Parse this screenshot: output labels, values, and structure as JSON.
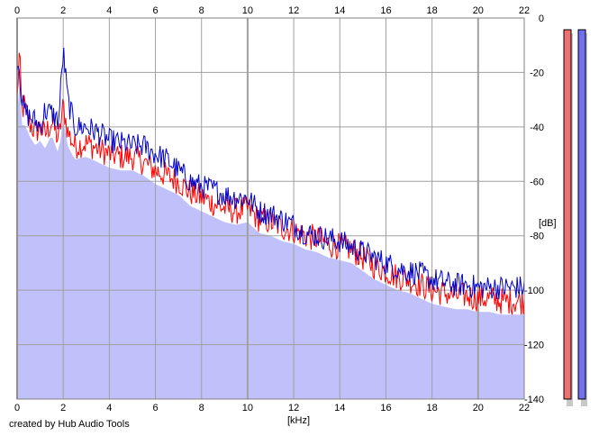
{
  "chart_data": {
    "type": "area",
    "xlabel": "[kHz]",
    "ylabel": "[dB]",
    "xlim": [
      0,
      22
    ],
    "ylim": [
      -140,
      0
    ],
    "x_ticks": [
      0,
      2,
      4,
      6,
      8,
      10,
      12,
      14,
      16,
      18,
      20,
      22
    ],
    "y_ticks": [
      0,
      -20,
      -40,
      -60,
      -80,
      -100,
      -120,
      -140
    ],
    "grid": true,
    "x_unit": "kHz",
    "y_unit": "dB",
    "fill_color": "#c0c0fa",
    "series": [
      {
        "color": "#ff0000",
        "x": [
          0,
          0.1,
          0.2,
          0.3,
          0.5,
          0.8,
          1.0,
          1.2,
          1.5,
          1.8,
          2.0,
          2.2,
          2.5,
          3.0,
          3.5,
          4.0,
          4.5,
          5.0,
          5.5,
          6.0,
          6.5,
          7.0,
          7.5,
          8.0,
          8.5,
          9.0,
          9.5,
          10.0,
          10.5,
          11.0,
          11.5,
          12.0,
          12.5,
          13.0,
          13.5,
          14.0,
          14.5,
          15.0,
          15.5,
          16.0,
          16.5,
          17.0,
          17.5,
          18.0,
          18.5,
          19.0,
          19.5,
          20.0,
          20.5,
          21.0,
          21.5,
          22.0
        ],
        "values": [
          -30,
          -12,
          -35,
          -32,
          -38,
          -42,
          -40,
          -43,
          -38,
          -45,
          -32,
          -42,
          -47,
          -46,
          -48,
          -50,
          -51,
          -51,
          -53,
          -56,
          -58,
          -60,
          -64,
          -66,
          -68,
          -70,
          -71,
          -70,
          -74,
          -75,
          -77,
          -78,
          -80,
          -81,
          -83,
          -84,
          -85,
          -88,
          -91,
          -93,
          -95,
          -96,
          -98,
          -100,
          -101,
          -102,
          -102,
          -103,
          -103,
          -104,
          -104,
          -104
        ]
      },
      {
        "color": "#0000c8",
        "x": [
          0,
          0.1,
          0.2,
          0.3,
          0.5,
          0.8,
          1.0,
          1.2,
          1.5,
          1.8,
          2.0,
          2.2,
          2.5,
          3.0,
          3.5,
          4.0,
          4.5,
          5.0,
          5.5,
          6.0,
          6.5,
          7.0,
          7.5,
          8.0,
          8.5,
          9.0,
          9.5,
          10.0,
          10.5,
          11.0,
          11.5,
          12.0,
          12.5,
          13.0,
          13.5,
          14.0,
          14.5,
          15.0,
          15.5,
          16.0,
          16.5,
          17.0,
          17.5,
          18.0,
          18.5,
          19.0,
          19.5,
          20.0,
          20.5,
          21.0,
          21.5,
          22.0
        ],
        "values": [
          -15,
          -18,
          -30,
          -34,
          -36,
          -38,
          -40,
          -34,
          -35,
          -38,
          -12,
          -30,
          -40,
          -40,
          -42,
          -45,
          -46,
          -47,
          -47,
          -50,
          -52,
          -56,
          -60,
          -62,
          -63,
          -65,
          -66,
          -66,
          -71,
          -72,
          -74,
          -76,
          -79,
          -80,
          -81,
          -82,
          -84,
          -86,
          -88,
          -90,
          -92,
          -93,
          -94,
          -96,
          -97,
          -98,
          -98,
          -99,
          -99,
          -99,
          -99,
          -99
        ]
      }
    ]
  },
  "meters": {
    "left_color": "#f07070",
    "right_color": "#7070f0"
  },
  "footer": {
    "credit": "created by Hub Audio Tools"
  }
}
